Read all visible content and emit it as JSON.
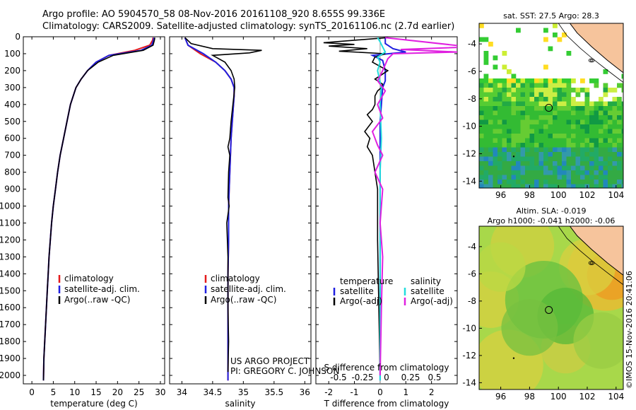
{
  "title_line1": "Argo profile: AO 5904570_58 08-Nov-2016 20161108_920 8.655S 99.336E",
  "title_line2": "Climatology: CARS2009. Satellite-adjusted climatology: synTS_20161106.nc (2.7d earlier)",
  "colors": {
    "climatology": "#e41a1c",
    "satellite": "#1f1fe0",
    "argo": "#000000",
    "salinity_sat": "#22dddd",
    "salinity_argo": "#e020e0"
  },
  "chart_data": [
    {
      "id": "temperature",
      "type": "line",
      "xlabel": "temperature (deg C)",
      "xlim": [
        -2,
        31
      ],
      "xticks": [
        0,
        5,
        10,
        15,
        20,
        25,
        30
      ],
      "ylim": [
        0,
        2050
      ],
      "yticks": [
        0,
        100,
        200,
        300,
        400,
        500,
        600,
        700,
        800,
        900,
        1000,
        1100,
        1200,
        1300,
        1400,
        1500,
        1600,
        1700,
        1800,
        1900,
        2000
      ],
      "legend": [
        "climatology",
        "satellite-adj. clim.",
        "Argo(..raw -QC)"
      ],
      "series": [
        {
          "name": "climatology",
          "color_key": "climatology",
          "x": [
            28.3,
            28.2,
            27.5,
            24,
            18,
            15,
            13,
            11.5,
            10.3,
            9.0,
            8.2,
            7.4,
            6.6,
            6.0,
            5.5,
            5.0,
            4.6,
            4.3,
            4.0,
            3.8,
            3.6,
            3.4,
            3.2,
            3.0,
            2.8,
            2.7
          ],
          "y": [
            5,
            20,
            50,
            80,
            110,
            150,
            200,
            250,
            300,
            400,
            500,
            600,
            700,
            800,
            900,
            1000,
            1100,
            1200,
            1300,
            1400,
            1500,
            1600,
            1700,
            1800,
            1900,
            2030
          ]
        },
        {
          "name": "satellite-adj. clim.",
          "color_key": "satellite",
          "x": [
            28.5,
            28.4,
            28.0,
            25.5,
            18,
            15,
            13,
            11.5,
            10.3,
            9.0,
            8.2,
            7.4,
            6.6,
            6.0,
            5.5,
            5.0,
            4.6,
            4.3,
            4.0,
            3.8,
            3.6,
            3.4,
            3.2,
            3.0,
            2.8,
            2.7
          ],
          "y": [
            5,
            20,
            50,
            80,
            110,
            150,
            200,
            250,
            300,
            400,
            500,
            600,
            700,
            800,
            900,
            1000,
            1100,
            1200,
            1300,
            1400,
            1500,
            1600,
            1700,
            1800,
            1900,
            2030
          ]
        },
        {
          "name": "Argo(..raw -QC)",
          "color_key": "argo",
          "x": [
            28.7,
            28.6,
            28.3,
            26,
            19,
            15.5,
            13,
            11.5,
            10.3,
            9.0,
            8.2,
            7.4,
            6.6,
            6.0,
            5.5,
            5.0,
            4.6,
            4.3,
            4.0,
            3.8,
            3.6,
            3.4,
            3.2,
            3.0,
            2.8,
            2.7
          ],
          "y": [
            5,
            20,
            50,
            80,
            110,
            150,
            200,
            250,
            300,
            400,
            500,
            600,
            700,
            800,
            900,
            1000,
            1100,
            1200,
            1300,
            1400,
            1500,
            1600,
            1700,
            1800,
            1900,
            2030
          ]
        }
      ]
    },
    {
      "id": "salinity",
      "type": "line",
      "xlabel": "salinity",
      "xlim": [
        33.8,
        36.1
      ],
      "xticks": [
        34,
        34.5,
        35,
        35.5,
        36
      ],
      "ylim": [
        0,
        2050
      ],
      "legend": [
        "climatology",
        "satellite-adj. clim.",
        "Argo(..raw -QC)"
      ],
      "annotation": [
        "US ARGO PROJECT",
        "PI: GREGORY C. JOHNSON"
      ],
      "series": [
        {
          "name": "climatology",
          "color_key": "climatology",
          "x": [
            34.05,
            34.1,
            34.3,
            34.55,
            34.7,
            34.8,
            34.85,
            34.85,
            34.84,
            34.82,
            34.8,
            34.79,
            34.78,
            34.77,
            34.76,
            34.76,
            34.75,
            34.75,
            34.75,
            34.75
          ],
          "y": [
            5,
            50,
            100,
            150,
            200,
            250,
            300,
            350,
            400,
            500,
            600,
            700,
            800,
            900,
            1000,
            1200,
            1400,
            1600,
            1800,
            2030
          ]
        },
        {
          "name": "satellite-adj. clim.",
          "color_key": "satellite",
          "x": [
            34.05,
            34.1,
            34.35,
            34.55,
            34.7,
            34.8,
            34.85,
            34.85,
            34.84,
            34.82,
            34.8,
            34.79,
            34.78,
            34.77,
            34.76,
            34.76,
            34.75,
            34.75,
            34.75,
            34.75
          ],
          "y": [
            5,
            50,
            100,
            150,
            200,
            250,
            300,
            350,
            400,
            500,
            600,
            700,
            800,
            900,
            1000,
            1200,
            1400,
            1600,
            1800,
            2030
          ]
        },
        {
          "name": "Argo(..raw -QC)",
          "color_key": "argo",
          "x": [
            34.05,
            34.15,
            34.5,
            35.3,
            35.1,
            34.5,
            34.7,
            34.8,
            34.85,
            34.86,
            34.83,
            34.8,
            34.78,
            34.75,
            34.78,
            34.76,
            34.75,
            34.77,
            34.73,
            34.75,
            34.75,
            34.76,
            34.75
          ],
          "y": [
            5,
            40,
            70,
            80,
            95,
            110,
            150,
            200,
            250,
            300,
            400,
            500,
            600,
            650,
            700,
            800,
            950,
            1000,
            1100,
            1300,
            1600,
            1800,
            1980
          ]
        }
      ]
    },
    {
      "id": "difference",
      "type": "line",
      "xlabel": "T difference from climatology",
      "xlabel_top": "S difference from climatology",
      "xlim": [
        -2.5,
        3
      ],
      "xticks": [
        -2,
        -1,
        0,
        1,
        2
      ],
      "xticks_top": [
        "-0.5",
        "-0.25",
        "0",
        "0.25",
        "0.5"
      ],
      "ylim": [
        0,
        2050
      ],
      "legend_t_title": "temperature",
      "legend_s_title": "salinity",
      "legend": [
        "satellite",
        "Argo(-adj)",
        "satellite",
        "Argo(-adj)"
      ],
      "series": [
        {
          "name": "satellite",
          "color_key": "satellite",
          "x": [
            0.2,
            0.2,
            0.5,
            1.0,
            -0.3,
            0.1,
            0.2,
            0.2,
            0.1,
            0.05,
            0,
            0,
            0,
            0,
            0,
            0,
            0
          ],
          "y": [
            5,
            40,
            70,
            90,
            110,
            140,
            200,
            260,
            300,
            400,
            500,
            700,
            900,
            1100,
            1400,
            1700,
            2030
          ]
        },
        {
          "name": "Argo(-adj)",
          "color_key": "argo",
          "x": [
            0.3,
            -2.2,
            -1.0,
            -2.0,
            -0.5,
            -1.6,
            0.2,
            -0.2,
            -0.3,
            0.3,
            -0.2,
            0.1,
            0.05,
            -0.1,
            -0.2,
            -0.2,
            -0.3,
            -0.5,
            -0.3,
            -0.6,
            -0.4,
            -0.5,
            -0.3,
            -0.2,
            -0.1,
            -0.1,
            -0.05,
            0
          ],
          "y": [
            5,
            35,
            45,
            55,
            70,
            85,
            100,
            120,
            150,
            200,
            250,
            280,
            300,
            320,
            350,
            400,
            430,
            460,
            500,
            560,
            600,
            650,
            700,
            800,
            900,
            1200,
            1600,
            2000
          ]
        },
        {
          "name": "satellite",
          "color_key": "salinity_sat",
          "x": [
            -0.1,
            0.0,
            0.1,
            0.2,
            -0.1,
            0.0,
            -0.1,
            0.05,
            0,
            0.05,
            0,
            0,
            0,
            0,
            0,
            0
          ],
          "y": [
            5,
            30,
            60,
            90,
            120,
            150,
            200,
            300,
            400,
            600,
            800,
            1000,
            1200,
            1500,
            1800,
            2030
          ]
        },
        {
          "name": "Argo(-adj)",
          "color_key": "salinity_argo",
          "x": [
            0.2,
            3.5,
            0.8,
            3.0,
            0.5,
            0.3,
            0.1,
            -0.1,
            0.2,
            -0.1,
            0.1,
            -0.3,
            -0.1,
            0.1,
            -0.2,
            0.1,
            0,
            0.1,
            0.05,
            0
          ],
          "y": [
            5,
            60,
            75,
            90,
            100,
            130,
            200,
            260,
            320,
            400,
            480,
            560,
            640,
            700,
            800,
            900,
            1100,
            1300,
            1600,
            2000
          ]
        }
      ]
    },
    {
      "id": "sst_map",
      "type": "heatmap",
      "title": "sat. SST: 27.5 Argo: 28.3",
      "xlim": [
        94.5,
        104.5
      ],
      "ylim": [
        -14.5,
        -2.5
      ],
      "xticks": [
        96,
        98,
        100,
        102,
        104
      ],
      "yticks": [
        -4,
        -6,
        -8,
        -10,
        -12,
        -14
      ],
      "argo_position": [
        99.336,
        -8.655
      ]
    },
    {
      "id": "sla_map",
      "type": "heatmap",
      "title_line1": "Altim. SLA: -0.019",
      "title_line2": "Argo h1000: -0.041 h2000: -0.06",
      "xlim": [
        94.5,
        104.5
      ],
      "ylim": [
        -14.5,
        -2.5
      ],
      "xticks": [
        96,
        98,
        100,
        102,
        104
      ],
      "yticks": [
        -4,
        -6,
        -8,
        -10,
        -12,
        -14
      ],
      "argo_position": [
        99.336,
        -8.655
      ]
    }
  ],
  "copyright": "©IMOS 15-Nov-2016 20:41:06"
}
